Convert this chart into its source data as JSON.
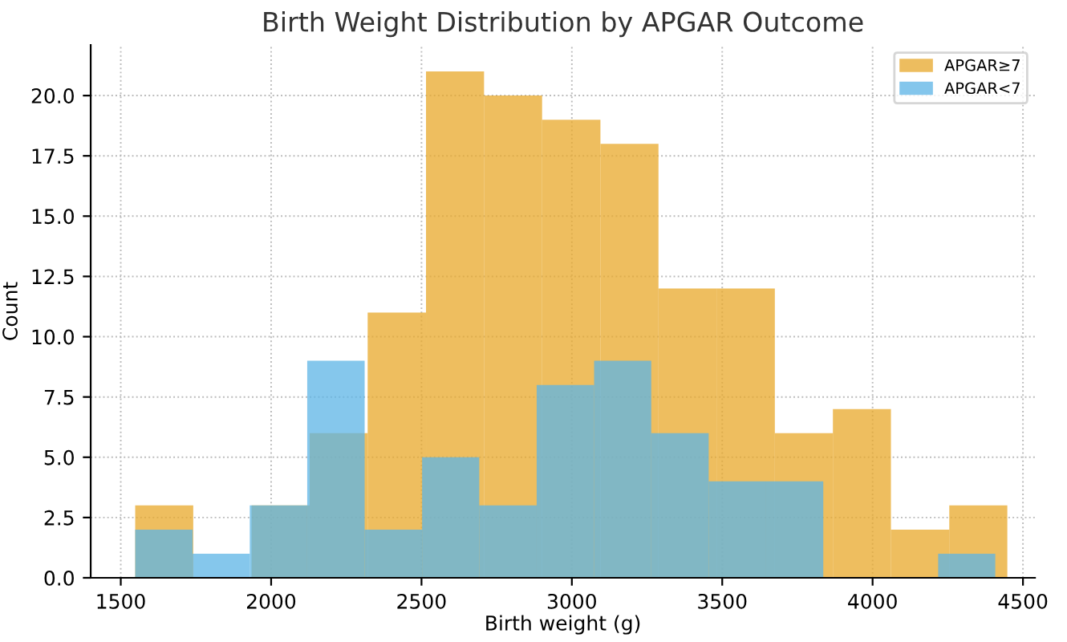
{
  "chart_data": {
    "type": "histogram",
    "title": "Birth Weight Distribution by APGAR Outcome",
    "xlabel": "Birth weight (g)",
    "ylabel": "Count",
    "bins": [
      1548,
      1741,
      1935,
      2128,
      2321,
      2515,
      2708,
      2901,
      3095,
      3288,
      3481,
      3675,
      3868,
      4061,
      4255,
      4448
    ],
    "series": [
      {
        "name": "APGAR≥7",
        "color": "#e8a82a",
        "values": [
          3,
          0,
          3,
          6,
          11,
          21,
          20,
          19,
          18,
          12,
          12,
          6,
          7,
          2,
          3
        ]
      },
      {
        "name": "APGAR<7",
        "color": "#5cb4e6",
        "bins": [
          1548,
          1739,
          1929,
          2120,
          2311,
          2502,
          2692,
          2883,
          3074,
          3264,
          3455,
          3646,
          3836,
          4027,
          4218,
          4408
        ],
        "values": [
          2,
          1,
          3,
          9,
          2,
          5,
          3,
          8,
          9,
          6,
          4,
          4,
          0,
          0,
          1
        ]
      }
    ],
    "xlim": [
      1400,
      4540
    ],
    "xticks": [
      1500,
      2000,
      2500,
      3000,
      3500,
      4000,
      4500
    ],
    "ylim": [
      0,
      22.1
    ],
    "yticks": [
      {
        "value": 0,
        "label": "0.0"
      },
      {
        "value": 2.5,
        "label": "2.5"
      },
      {
        "value": 5,
        "label": "5.0"
      },
      {
        "value": 7.5,
        "label": "7.5"
      },
      {
        "value": 10,
        "label": "10.0"
      },
      {
        "value": 12.5,
        "label": "12.5"
      },
      {
        "value": 15,
        "label": "15.0"
      },
      {
        "value": 17.5,
        "label": "17.5"
      },
      {
        "value": 20,
        "label": "20.0"
      }
    ],
    "grid": true,
    "legend": "top right"
  }
}
